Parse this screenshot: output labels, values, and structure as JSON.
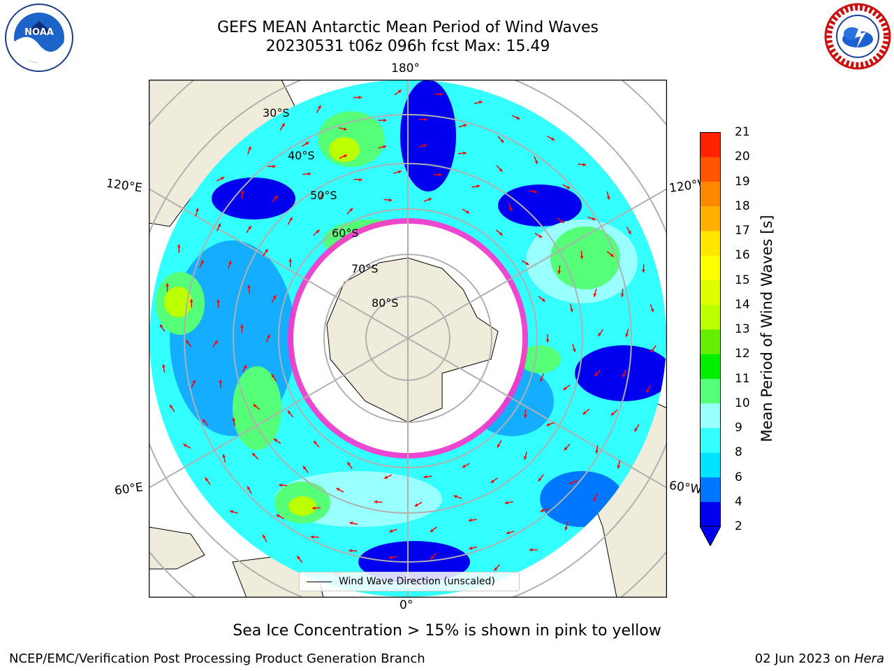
{
  "title_line1": "GEFS MEAN Antarctic Mean Period of Wind Waves",
  "title_line2": "20230531 t06z 096h fcst   Max: 15.49",
  "longitude_labels": {
    "top": "180°",
    "bottom": "0°",
    "left_upper": "120°E",
    "right_upper": "120°W",
    "left_lower": "60°E",
    "right_lower": "60°W"
  },
  "latitude_labels": [
    "30°S",
    "40°S",
    "50°S",
    "60°S",
    "70°S",
    "80°S"
  ],
  "legend_label": "Wind Wave Direction (unscaled)",
  "colorbar": {
    "label": "Mean Period of Wind Waves [s]",
    "ticks": [
      "2",
      "4",
      "6",
      "7",
      "8",
      "9",
      "10",
      "11",
      "12",
      "13",
      "14",
      "15",
      "16",
      "17",
      "18",
      "19",
      "20",
      "21"
    ],
    "colors": [
      "#0000ee",
      "#0077ff",
      "#00e4ff",
      "#33ffff",
      "#99ffff",
      "#55ff77",
      "#00ee00",
      "#66ee00",
      "#bbff00",
      "#ddff00",
      "#ffff00",
      "#ffe600",
      "#ffb000",
      "#ff8800",
      "#ff5500",
      "#ff2200",
      "#ff0000"
    ],
    "extend_color": "#0000ee"
  },
  "ice_note": "Sea Ice Concentration > 15% is shown in pink to yellow",
  "credit": "NCEP/EMC/Verification Post Processing Product Generation Branch",
  "date_text": "02 Jun 2023 on ",
  "machine": "Hera",
  "logos": {
    "noaa_text": "NOAA",
    "noaa_ring": "NATIONAL OCEANIC AND ATMOSPHERIC ADMINISTRATION",
    "noaa_ring2": "U.S. DEPARTMENT OF COMMERCE",
    "nws_ring": "NATIONAL WEATHER SERVICE"
  },
  "colors": {
    "land": "#efecdc",
    "ocean_low": "#0000ee",
    "ocean_mid": "#33ffff",
    "waves_high": "#66ee00",
    "arrow": "#ff0000",
    "ice_edge": "#ff33cc",
    "grid": "#b0b0b0"
  }
}
